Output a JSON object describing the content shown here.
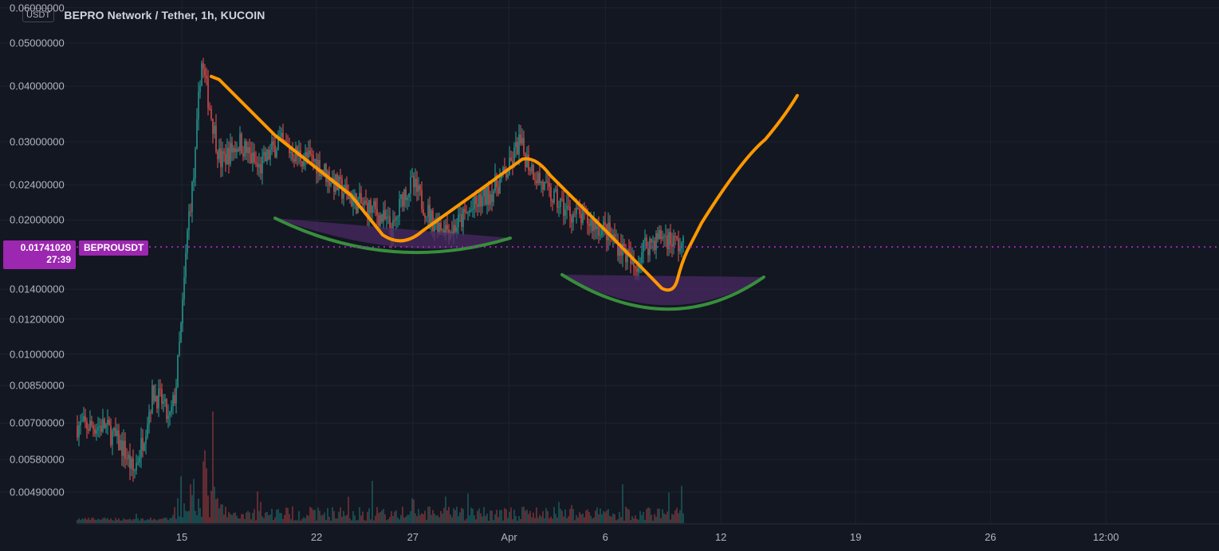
{
  "header": {
    "currency_badge": "USDT",
    "title": "BEPRO Network / Tether, 1h, KUCOIN"
  },
  "price_scale": {
    "labels": [
      "0.06000000",
      "0.05000000",
      "0.04000000",
      "0.03000000",
      "0.02400000",
      "0.02000000",
      "0.01400000",
      "0.01200000",
      "0.01000000",
      "0.00850000",
      "0.00700000",
      "0.00580000",
      "0.00490000"
    ]
  },
  "last_price": {
    "value": "0.01741020",
    "countdown": "27:39",
    "symbol": "BEPROUSDT"
  },
  "time_axis": {
    "labels": [
      "15",
      "22",
      "27",
      "Apr",
      "6",
      "12",
      "19",
      "26",
      "12:00"
    ]
  },
  "colors": {
    "background": "#131722",
    "grid": "#1e222d",
    "up": "#26a69a",
    "down": "#ef5350",
    "price_line": "#9c27b0",
    "drawing_orange": "#ff9800",
    "drawing_green": "#388e3c",
    "fill_purple": "#4a2a63"
  },
  "chart_data": {
    "type": "candlestick",
    "title": "BEPRO Network / Tether, 1h, KUCOIN",
    "scale": "log",
    "ylim": [
      0.0042,
      0.06
    ],
    "grid": true,
    "last_price": 0.0174102,
    "price_path": [
      [
        "Mar 11",
        0.0069
      ],
      [
        "Mar 12",
        0.0061
      ],
      [
        "Mar 12",
        0.0054
      ],
      [
        "Mar 13",
        0.0065
      ],
      [
        "Mar 13",
        0.0082
      ],
      [
        "Mar 14",
        0.0078
      ],
      [
        "Mar 14",
        0.007
      ],
      [
        "Mar 14",
        0.0082
      ],
      [
        "Mar 15",
        0.012
      ],
      [
        "Mar 15",
        0.02
      ],
      [
        "Mar 15",
        0.026
      ],
      [
        "Mar 16",
        0.046
      ],
      [
        "Mar 16",
        0.035
      ],
      [
        "Mar 17",
        0.027
      ],
      [
        "Mar 18",
        0.03
      ],
      [
        "Mar 19",
        0.026
      ],
      [
        "Mar 20",
        0.03
      ],
      [
        "Mar 21",
        0.028
      ],
      [
        "Mar 22",
        0.027
      ],
      [
        "Mar 23",
        0.024
      ],
      [
        "Mar 24",
        0.022
      ],
      [
        "Mar 25",
        0.021
      ],
      [
        "Mar 26",
        0.019
      ],
      [
        "Mar 26",
        0.023
      ],
      [
        "Mar 27",
        0.024
      ],
      [
        "Mar 28",
        0.02
      ],
      [
        "Mar 29",
        0.019
      ],
      [
        "Mar 30",
        0.021
      ],
      [
        "Mar 31",
        0.023
      ],
      [
        "Apr 1",
        0.026
      ],
      [
        "Apr 1",
        0.03
      ],
      [
        "Apr 2",
        0.027
      ],
      [
        "Apr 3",
        0.023
      ],
      [
        "Apr 4",
        0.021
      ],
      [
        "Apr 5",
        0.02
      ],
      [
        "Apr 6",
        0.019
      ],
      [
        "Apr 7",
        0.017
      ],
      [
        "Apr 7",
        0.0155
      ],
      [
        "Apr 8",
        0.0175
      ],
      [
        "Apr 9",
        0.0185
      ],
      [
        "Apr 10",
        0.0174
      ]
    ],
    "volume_peak_date": "Mar 16"
  }
}
